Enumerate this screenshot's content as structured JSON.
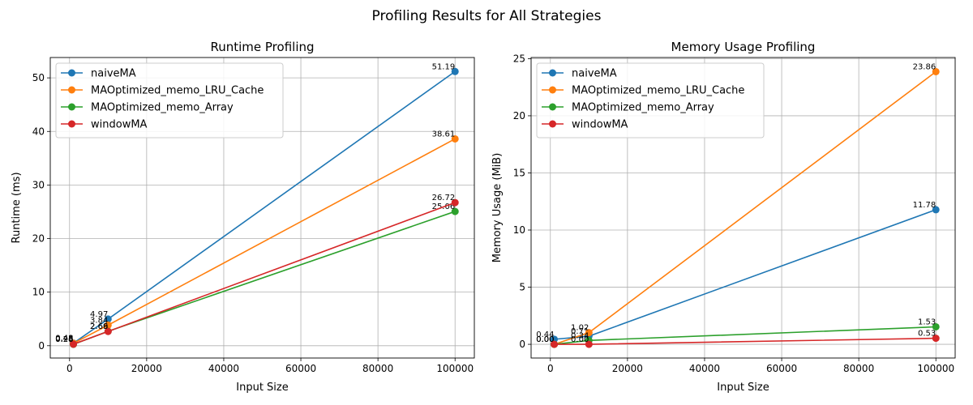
{
  "figure_title": "Profiling Results for All Strategies",
  "colors": {
    "naiveMA": "#1f77b4",
    "MAOptimized_memo_LRU_Cache": "#ff7f0e",
    "MAOptimized_memo_Array": "#2ca02c",
    "windowMA": "#d62728",
    "grid": "#b0b0b0"
  },
  "chart_data": [
    {
      "type": "line",
      "title": "Runtime Profiling",
      "xlabel": "Input Size",
      "ylabel": "Runtime (ms)",
      "xlim": [
        -5000,
        105000
      ],
      "ylim": [
        -2.3,
        53.8
      ],
      "xticks": [
        0,
        20000,
        40000,
        60000,
        80000,
        100000
      ],
      "yticks": [
        0,
        10,
        20,
        30,
        40,
        50
      ],
      "grid": true,
      "legend_position": "top-left",
      "x": [
        1000,
        10000,
        100000
      ],
      "series": [
        {
          "name": "naiveMA",
          "values": [
            0.48,
            4.97,
            51.19
          ],
          "labels": [
            "0.48",
            "4.97",
            "51.19"
          ]
        },
        {
          "name": "MAOptimized_memo_LRU_Cache",
          "values": [
            0.45,
            3.84,
            38.61
          ],
          "labels": [
            "0.45",
            "3.84",
            "38.61"
          ]
        },
        {
          "name": "MAOptimized_memo_Array",
          "values": [
            0.26,
            2.69,
            25.06
          ],
          "labels": [
            "0.26",
            "2.69",
            "25.06"
          ]
        },
        {
          "name": "windowMA",
          "values": [
            0.28,
            2.66,
            26.72
          ],
          "labels": [
            "0.28",
            "2.66",
            "26.72"
          ]
        }
      ]
    },
    {
      "type": "line",
      "title": "Memory Usage Profiling",
      "xlabel": "Input Size",
      "ylabel": "Memory Usage (MiB)",
      "xlim": [
        -5000,
        105000
      ],
      "ylim": [
        -1.2,
        25.1
      ],
      "xticks": [
        0,
        20000,
        40000,
        60000,
        80000,
        100000
      ],
      "yticks": [
        0,
        5,
        10,
        15,
        20,
        25
      ],
      "grid": true,
      "legend_position": "top-left",
      "x": [
        1000,
        10000,
        100000
      ],
      "series": [
        {
          "name": "naiveMA",
          "values": [
            0.44,
            0.71,
            11.78
          ],
          "labels": [
            "0.44",
            "0.71",
            "11.78"
          ]
        },
        {
          "name": "MAOptimized_memo_LRU_Cache",
          "values": [
            0.0,
            1.02,
            23.86
          ],
          "labels": [
            "0.00",
            "1.02",
            "23.86"
          ]
        },
        {
          "name": "MAOptimized_memo_Array",
          "values": [
            0.0,
            0.34,
            1.53
          ],
          "labels": [
            "0.00",
            "0.34",
            "1.53"
          ]
        },
        {
          "name": "windowMA",
          "values": [
            0.0,
            0.0,
            0.53
          ],
          "labels": [
            "0.00",
            "0.00",
            "0.53"
          ]
        }
      ]
    }
  ]
}
